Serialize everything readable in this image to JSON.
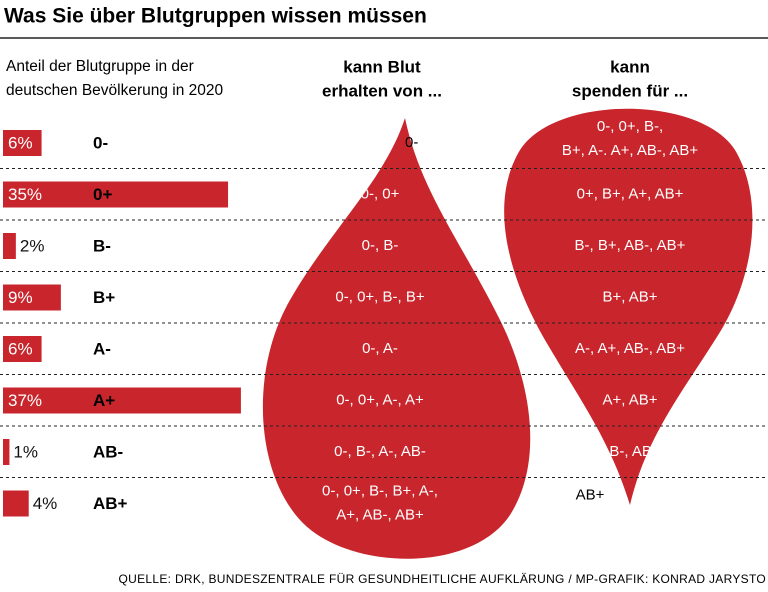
{
  "chart_data": {
    "type": "bar",
    "title": "Was Sie über Blutgruppen wissen müssen",
    "subtitle": [
      "Anteil der Blutgruppe in der",
      "deutschen Bevölkerung in 2020"
    ],
    "categories": [
      "0-",
      "0+",
      "B-",
      "B+",
      "A-",
      "A+",
      "AB-",
      "AB+"
    ],
    "values": [
      6,
      35,
      2,
      9,
      6,
      37,
      1,
      4
    ],
    "value_labels": [
      "6%",
      "35%",
      "2%",
      "9%",
      "6%",
      "37%",
      "1%",
      "4%"
    ],
    "color": "#c8262c",
    "receive_header": [
      "kann Blut",
      "erhalten von ..."
    ],
    "receive": [
      [
        "0-"
      ],
      [
        "0-, 0+"
      ],
      [
        "0-, B-"
      ],
      [
        "0-, 0+, B-, B+"
      ],
      [
        "0-, A-"
      ],
      [
        "0-, 0+, A-, A+"
      ],
      [
        "0-, B-, A-, AB-"
      ],
      [
        "0-, 0+, B-, B+, A-,",
        "A+, AB-, AB+"
      ]
    ],
    "donate_header": [
      "kann",
      "spenden für ..."
    ],
    "donate": [
      [
        "0-, 0+, B-,",
        "B+, A-. A+, AB-, AB+"
      ],
      [
        "0+, B+, A+, AB+"
      ],
      [
        "B-, B+, AB-, AB+"
      ],
      [
        "B+, AB+"
      ],
      [
        "A-, A+, AB-, AB+"
      ],
      [
        "A+, AB+"
      ],
      [
        "AB-, AB+"
      ],
      [
        "AB+"
      ]
    ],
    "source": "QUELLE: DRK, BUNDESZENTRALE FÜR GESUNDHEITLICHE AUFKLÄRUNG / MP-GRAFIK: KONRAD JARYSTO"
  }
}
